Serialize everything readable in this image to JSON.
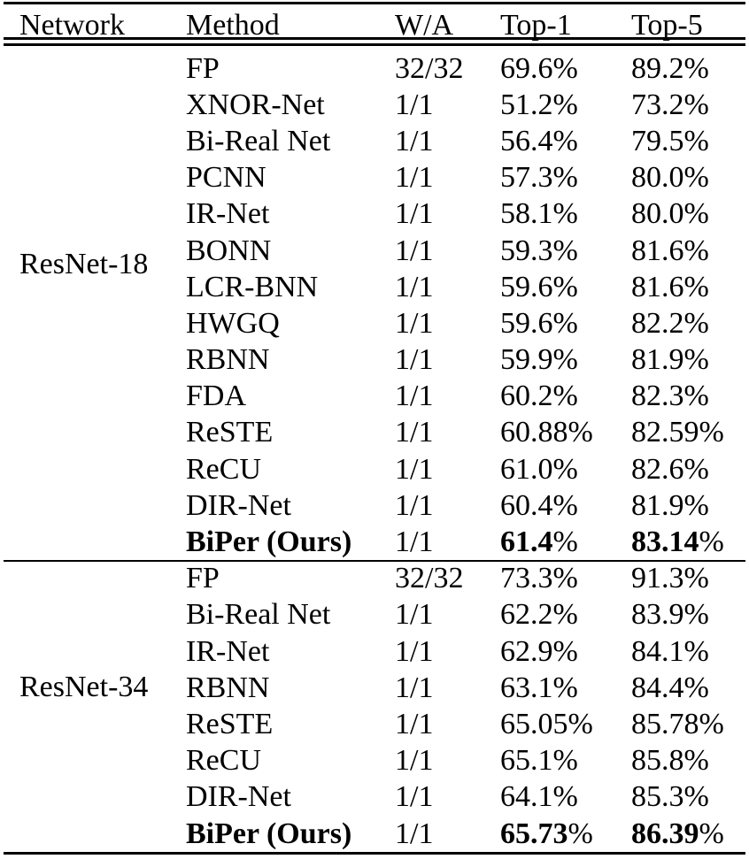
{
  "colors": {
    "text": "#000000",
    "background": "#ffffff"
  },
  "table": {
    "columns": [
      "Network",
      "Method",
      "W/A",
      "Top-1",
      "Top-5"
    ],
    "percent_sign": "%",
    "sections": [
      {
        "network": "ResNet-18",
        "rows": [
          {
            "method": "FP",
            "wa": "32/32",
            "top1": "69.6",
            "top5": "89.2",
            "bold": false
          },
          {
            "method": "XNOR-Net",
            "wa": "1/1",
            "top1": "51.2",
            "top5": "73.2",
            "bold": false
          },
          {
            "method": "Bi-Real Net",
            "wa": "1/1",
            "top1": "56.4",
            "top5": "79.5",
            "bold": false
          },
          {
            "method": "PCNN",
            "wa": "1/1",
            "top1": "57.3",
            "top5": "80.0",
            "bold": false
          },
          {
            "method": "IR-Net",
            "wa": "1/1",
            "top1": "58.1",
            "top5": "80.0",
            "bold": false
          },
          {
            "method": "BONN",
            "wa": "1/1",
            "top1": "59.3",
            "top5": "81.6",
            "bold": false
          },
          {
            "method": "LCR-BNN",
            "wa": "1/1",
            "top1": "59.6",
            "top5": "81.6",
            "bold": false
          },
          {
            "method": "HWGQ",
            "wa": "1/1",
            "top1": "59.6",
            "top5": "82.2",
            "bold": false
          },
          {
            "method": "RBNN",
            "wa": "1/1",
            "top1": "59.9",
            "top5": "81.9",
            "bold": false
          },
          {
            "method": "FDA",
            "wa": "1/1",
            "top1": "60.2",
            "top5": "82.3",
            "bold": false
          },
          {
            "method": "ReSTE",
            "wa": "1/1",
            "top1": "60.88",
            "top5": "82.59",
            "bold": false
          },
          {
            "method": "ReCU",
            "wa": "1/1",
            "top1": "61.0",
            "top5": "82.6",
            "bold": false
          },
          {
            "method": "DIR-Net",
            "wa": "1/1",
            "top1": "60.4",
            "top5": "81.9",
            "bold": false
          },
          {
            "method": "BiPer (Ours)",
            "wa": "1/1",
            "top1": "61.4",
            "top5": "83.14",
            "bold": true
          }
        ]
      },
      {
        "network": "ResNet-34",
        "rows": [
          {
            "method": "FP",
            "wa": "32/32",
            "top1": "73.3",
            "top5": "91.3",
            "bold": false
          },
          {
            "method": "Bi-Real Net",
            "wa": "1/1",
            "top1": "62.2",
            "top5": "83.9",
            "bold": false
          },
          {
            "method": "IR-Net",
            "wa": "1/1",
            "top1": "62.9",
            "top5": "84.1",
            "bold": false
          },
          {
            "method": "RBNN",
            "wa": "1/1",
            "top1": "63.1",
            "top5": "84.4",
            "bold": false
          },
          {
            "method": "ReSTE",
            "wa": "1/1",
            "top1": "65.05",
            "top5": "85.78",
            "bold": false
          },
          {
            "method": "ReCU",
            "wa": "1/1",
            "top1": "65.1",
            "top5": "85.8",
            "bold": false
          },
          {
            "method": "DIR-Net",
            "wa": "1/1",
            "top1": "64.1",
            "top5": "85.3",
            "bold": false
          },
          {
            "method": "BiPer (Ours)",
            "wa": "1/1",
            "top1": "65.73",
            "top5": "86.39",
            "bold": true
          }
        ]
      }
    ]
  }
}
